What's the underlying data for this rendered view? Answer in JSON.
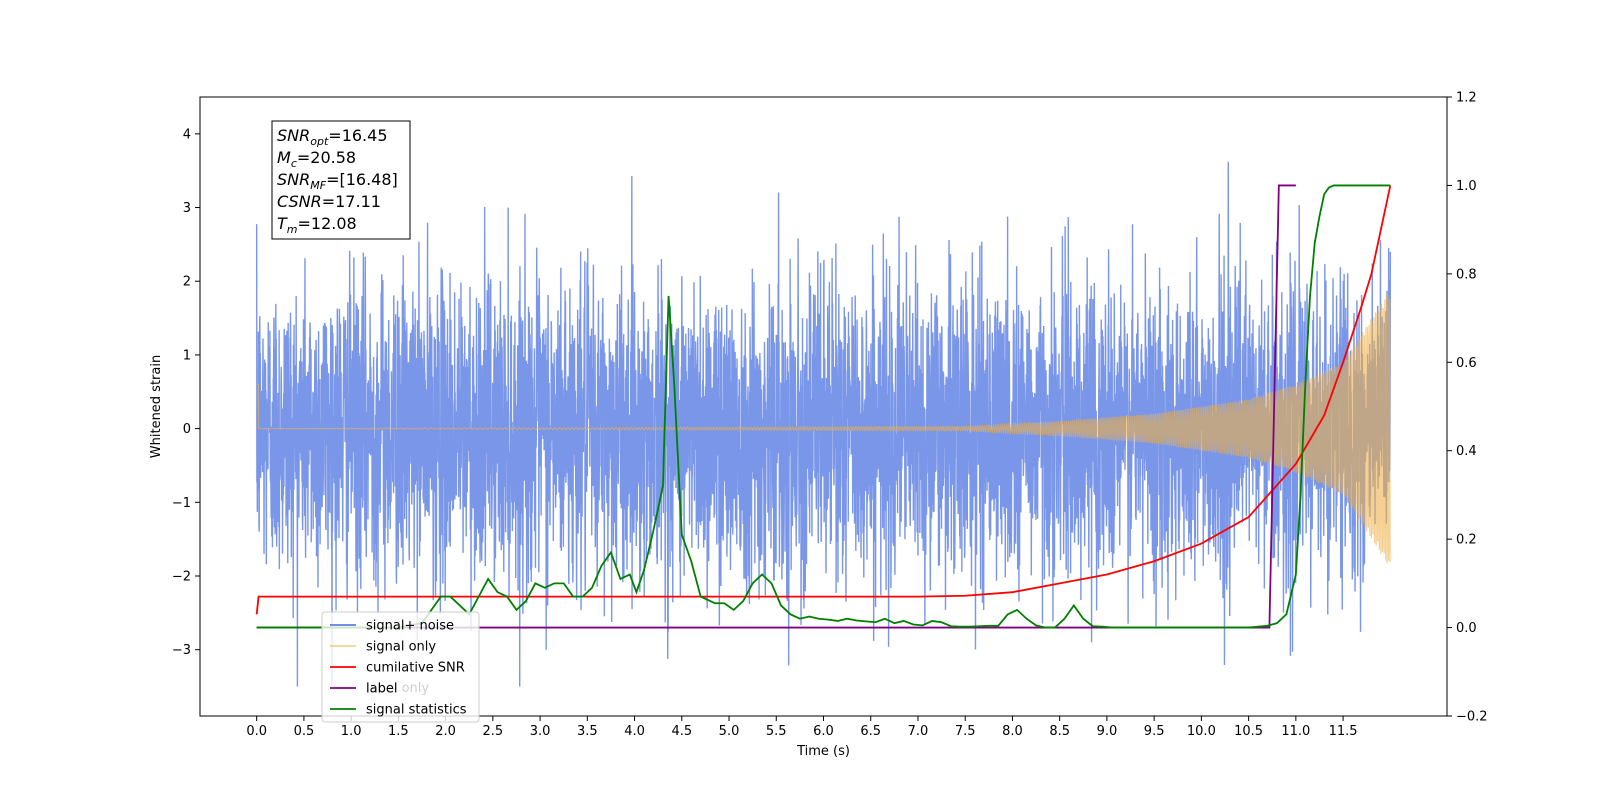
{
  "chart_data": {
    "type": "line",
    "xlabel": "Time (s)",
    "ylabel": "Whitened strain",
    "xlim": [
      -0.6,
      12.6
    ],
    "xticks": [
      "0.0",
      "0.5",
      "1.0",
      "1.5",
      "2.0",
      "2.5",
      "3.0",
      "3.5",
      "4.0",
      "4.5",
      "5.0",
      "5.5",
      "6.0",
      "6.5",
      "7.0",
      "7.5",
      "8.0",
      "8.5",
      "9.0",
      "9.5",
      "10.0",
      "10.5",
      "11.0",
      "11.5"
    ],
    "ylim_left": [
      -3.9,
      4.5
    ],
    "yticks_left": [
      "−3",
      "−2",
      "−1",
      "0",
      "1",
      "2",
      "3",
      "4"
    ],
    "ylim_right": [
      -0.2,
      1.2
    ],
    "yticks_right": [
      "−0.2",
      "0.0",
      "0.2",
      "0.4",
      "0.6",
      "0.8",
      "1.0",
      "1.2"
    ],
    "annotation": {
      "lines": [
        {
          "base": "SNR",
          "sub": "opt",
          "rest": "=16.45"
        },
        {
          "base": "M",
          "sub": "c",
          "rest": "=20.58"
        },
        {
          "base": "SNR",
          "sub": "MF",
          "rest": "=[16.48]"
        },
        {
          "base": "CSNR",
          "sub": "",
          "rest": "=17.11"
        },
        {
          "base": "T",
          "sub": "m",
          "rest": "=12.08"
        }
      ]
    },
    "legend": {
      "placement": "lower-left",
      "entries": [
        "signal+ noise",
        "signal only",
        "cumilative SNR",
        "label",
        "signal statistics"
      ],
      "hidden_text": "label only"
    },
    "colors": {
      "noise": "#5b7fe3",
      "signal": "#f0b04a",
      "csnr": "#ff0000",
      "label": "#800080",
      "stats": "#008000"
    },
    "series": [
      {
        "name": "signal+ noise",
        "axis": "left",
        "style": "noise",
        "x_range": [
          0.0,
          12.0
        ],
        "amplitude_sigma": 1.0,
        "peak_range": [
          -3.5,
          4.1
        ]
      },
      {
        "name": "signal only",
        "axis": "left",
        "style": "chirp",
        "x_range": [
          0.0,
          12.0
        ],
        "envelope": [
          [
            0.0,
            0.0
          ],
          [
            7.5,
            0.03
          ],
          [
            8.5,
            0.1
          ],
          [
            9.5,
            0.2
          ],
          [
            10.5,
            0.4
          ],
          [
            11.0,
            0.6
          ],
          [
            11.5,
            0.9
          ],
          [
            11.9,
            1.7
          ],
          [
            12.0,
            1.9
          ]
        ]
      },
      {
        "name": "cumilative SNR",
        "axis": "right",
        "style": "line",
        "points": [
          [
            0.0,
            0.03
          ],
          [
            0.02,
            0.07
          ],
          [
            7.0,
            0.07
          ],
          [
            7.5,
            0.072
          ],
          [
            8.0,
            0.08
          ],
          [
            8.5,
            0.1
          ],
          [
            9.0,
            0.12
          ],
          [
            9.5,
            0.15
          ],
          [
            10.0,
            0.19
          ],
          [
            10.5,
            0.25
          ],
          [
            11.0,
            0.37
          ],
          [
            11.3,
            0.48
          ],
          [
            11.5,
            0.6
          ],
          [
            11.7,
            0.73
          ],
          [
            11.8,
            0.8
          ],
          [
            11.9,
            0.9
          ],
          [
            12.0,
            1.0
          ]
        ]
      },
      {
        "name": "label",
        "axis": "right",
        "style": "line",
        "points": [
          [
            0.0,
            0.0
          ],
          [
            10.72,
            0.0
          ],
          [
            10.82,
            1.0
          ],
          [
            11.0,
            1.0
          ]
        ]
      },
      {
        "name": "signal statistics",
        "axis": "right",
        "style": "line",
        "points": [
          [
            0.0,
            0.0
          ],
          [
            1.5,
            0.0
          ],
          [
            1.75,
            0.01
          ],
          [
            1.85,
            0.04
          ],
          [
            1.95,
            0.07
          ],
          [
            2.05,
            0.07
          ],
          [
            2.15,
            0.05
          ],
          [
            2.25,
            0.03
          ],
          [
            2.35,
            0.07
          ],
          [
            2.45,
            0.11
          ],
          [
            2.55,
            0.08
          ],
          [
            2.65,
            0.07
          ],
          [
            2.75,
            0.04
          ],
          [
            2.85,
            0.06
          ],
          [
            2.95,
            0.1
          ],
          [
            3.05,
            0.09
          ],
          [
            3.15,
            0.1
          ],
          [
            3.25,
            0.1
          ],
          [
            3.35,
            0.07
          ],
          [
            3.45,
            0.07
          ],
          [
            3.55,
            0.09
          ],
          [
            3.65,
            0.14
          ],
          [
            3.75,
            0.17
          ],
          [
            3.85,
            0.11
          ],
          [
            3.95,
            0.12
          ],
          [
            4.02,
            0.08
          ],
          [
            4.1,
            0.13
          ],
          [
            4.2,
            0.22
          ],
          [
            4.3,
            0.32
          ],
          [
            4.36,
            0.75
          ],
          [
            4.42,
            0.55
          ],
          [
            4.5,
            0.21
          ],
          [
            4.6,
            0.15
          ],
          [
            4.7,
            0.07
          ],
          [
            4.85,
            0.055
          ],
          [
            4.95,
            0.055
          ],
          [
            5.05,
            0.04
          ],
          [
            5.15,
            0.06
          ],
          [
            5.25,
            0.1
          ],
          [
            5.35,
            0.12
          ],
          [
            5.45,
            0.1
          ],
          [
            5.55,
            0.05
          ],
          [
            5.65,
            0.03
          ],
          [
            5.75,
            0.02
          ],
          [
            5.85,
            0.025
          ],
          [
            5.95,
            0.02
          ],
          [
            6.05,
            0.018
          ],
          [
            6.15,
            0.015
          ],
          [
            6.25,
            0.02
          ],
          [
            6.35,
            0.016
          ],
          [
            6.45,
            0.014
          ],
          [
            6.55,
            0.012
          ],
          [
            6.65,
            0.02
          ],
          [
            6.75,
            0.01
          ],
          [
            6.85,
            0.015
          ],
          [
            6.95,
            0.007
          ],
          [
            7.05,
            0.005
          ],
          [
            7.15,
            0.015
          ],
          [
            7.25,
            0.012
          ],
          [
            7.35,
            0.003
          ],
          [
            7.45,
            0.002
          ],
          [
            7.55,
            0.002
          ],
          [
            7.65,
            0.003
          ],
          [
            7.75,
            0.004
          ],
          [
            7.85,
            0.004
          ],
          [
            7.95,
            0.03
          ],
          [
            8.05,
            0.04
          ],
          [
            8.15,
            0.02
          ],
          [
            8.25,
            0.005
          ],
          [
            8.35,
            0.0
          ],
          [
            8.45,
            0.0
          ],
          [
            8.55,
            0.02
          ],
          [
            8.65,
            0.05
          ],
          [
            8.75,
            0.02
          ],
          [
            8.85,
            0.003
          ],
          [
            8.95,
            0.002
          ],
          [
            9.05,
            0.0
          ],
          [
            9.2,
            0.0
          ],
          [
            9.6,
            0.0
          ],
          [
            10.0,
            0.0
          ],
          [
            10.5,
            0.0
          ],
          [
            10.6,
            0.002
          ],
          [
            10.7,
            0.004
          ],
          [
            10.8,
            0.01
          ],
          [
            10.9,
            0.03
          ],
          [
            11.0,
            0.12
          ],
          [
            11.05,
            0.3
          ],
          [
            11.1,
            0.55
          ],
          [
            11.15,
            0.75
          ],
          [
            11.2,
            0.87
          ],
          [
            11.25,
            0.93
          ],
          [
            11.3,
            0.98
          ],
          [
            11.35,
            0.995
          ],
          [
            11.4,
            1.0
          ],
          [
            12.0,
            1.0
          ]
        ]
      }
    ]
  }
}
